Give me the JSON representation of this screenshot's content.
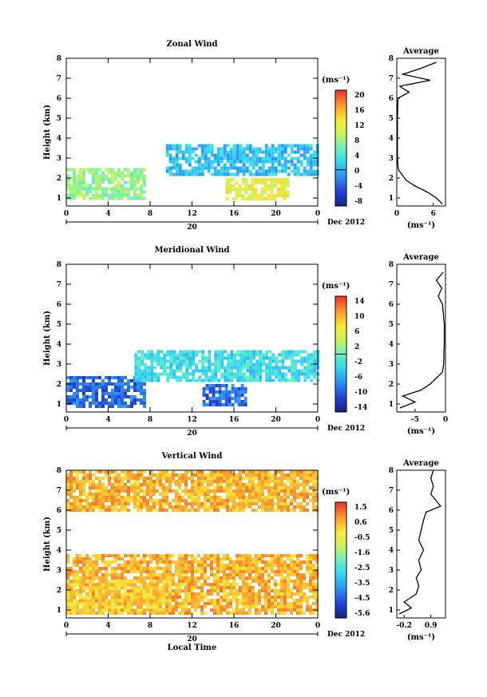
{
  "chart_data": [
    {
      "type": "heatmap",
      "title": "Zonal Wind",
      "xlabel": "",
      "ylabel": "Height (km)",
      "x_ticks": [
        "0",
        "4",
        "8",
        "12",
        "16",
        "20",
        "0"
      ],
      "y_ticks": [
        "1",
        "2",
        "3",
        "4",
        "5",
        "6",
        "7",
        "8"
      ],
      "xlim": [
        0,
        24
      ],
      "ylim": [
        0.6,
        8
      ],
      "date_day": "20",
      "date_label": "Dec 2012",
      "colorbar": {
        "unit": "(ms⁻¹)",
        "ticks": [
          "20",
          "16",
          "12",
          "8",
          "4",
          "0",
          "-4",
          "-8"
        ],
        "range": [
          -10,
          22
        ],
        "zero_line": 0
      },
      "regions": [
        {
          "x0": 0,
          "x1": 7.5,
          "y0": 0.9,
          "y1": 2.5,
          "value": 8
        },
        {
          "x0": 9.5,
          "x1": 24,
          "y0": 2.2,
          "y1": 3.7,
          "value": 1
        },
        {
          "x0": 15.2,
          "x1": 21,
          "y0": 0.9,
          "y1": 2.0,
          "value": 12
        }
      ],
      "profile": {
        "title": "Average",
        "xlabel": "(ms⁻¹)",
        "x_ticks": [
          "0",
          "6"
        ],
        "xlim": [
          0,
          8
        ],
        "heights": [
          0.7,
          1.0,
          1.3,
          1.6,
          1.9,
          2.2,
          2.4,
          2.6,
          3.0,
          4.0,
          5.0,
          6.0,
          6.3,
          6.6,
          6.9,
          7.2,
          7.5,
          7.8
        ],
        "values": [
          7.5,
          6.5,
          5.0,
          3.0,
          1.5,
          0.8,
          0.3,
          0.2,
          0.1,
          0.1,
          0.1,
          0.2,
          2.0,
          0.5,
          5.5,
          1.0,
          4.0,
          6.5
        ]
      }
    },
    {
      "type": "heatmap",
      "title": "Meridional Wind",
      "xlabel": "",
      "ylabel": "Height (km)",
      "x_ticks": [
        "0",
        "4",
        "8",
        "12",
        "16",
        "20",
        "0"
      ],
      "y_ticks": [
        "1",
        "2",
        "3",
        "4",
        "5",
        "6",
        "7",
        "8"
      ],
      "xlim": [
        0,
        24
      ],
      "ylim": [
        0.6,
        8
      ],
      "date_day": "20",
      "date_label": "Dec 2012",
      "colorbar": {
        "unit": "(ms⁻¹)",
        "ticks": [
          "14",
          "10",
          "6",
          "2",
          "-2",
          "-6",
          "-10",
          "-14"
        ],
        "range": [
          -16,
          16
        ],
        "zero_line": 0
      },
      "regions": [
        {
          "x0": 0,
          "x1": 7.5,
          "y0": 0.9,
          "y1": 2.4,
          "value": -10
        },
        {
          "x0": 6.5,
          "x1": 24,
          "y0": 2.2,
          "y1": 3.7,
          "value": -3
        },
        {
          "x0": 13,
          "x1": 17,
          "y0": 0.9,
          "y1": 2.0,
          "value": -10
        }
      ],
      "profile": {
        "title": "Average",
        "xlabel": "(ms⁻¹)",
        "x_ticks": [
          "-5",
          "0"
        ],
        "xlim": [
          -8,
          0
        ],
        "heights": [
          0.8,
          1.1,
          1.4,
          1.7,
          2.0,
          2.3,
          2.6,
          3.0,
          4.0,
          5.0,
          6.0,
          6.4,
          6.8,
          7.2,
          7.6
        ],
        "values": [
          -7.5,
          -5.0,
          -7.0,
          -4.0,
          -2.5,
          -1.5,
          -0.5,
          -0.3,
          -0.2,
          -0.2,
          -0.5,
          -1.2,
          -0.6,
          -1.5,
          -0.4
        ]
      }
    },
    {
      "type": "heatmap",
      "title": "Vertical Wind",
      "xlabel": "Local Time",
      "ylabel": "Height (km)",
      "x_ticks": [
        "0",
        "4",
        "8",
        "12",
        "16",
        "20",
        "0"
      ],
      "y_ticks": [
        "1",
        "2",
        "3",
        "4",
        "5",
        "6",
        "7",
        "8"
      ],
      "xlim": [
        0,
        24
      ],
      "ylim": [
        0.6,
        8
      ],
      "date_day": "20",
      "date_label": "Dec 2012",
      "colorbar": {
        "unit": "(ms⁻¹)",
        "ticks": [
          "1.5",
          "0.6",
          "-0.5",
          "-1.6",
          "-2.5",
          "-3.5",
          "-4.5",
          "-5.6"
        ],
        "range": [
          -6,
          2
        ],
        "zero_line": null
      },
      "regions": [
        {
          "x0": 0,
          "x1": 24,
          "y0": 0.9,
          "y1": 3.8,
          "value": 0.6
        },
        {
          "x0": 0,
          "x1": 10,
          "y0": 0.9,
          "y1": 2.5,
          "value": 0.2
        },
        {
          "x0": 0,
          "x1": 24,
          "y0": 6.0,
          "y1": 8.0,
          "value": 0.6
        }
      ],
      "profile": {
        "title": "Average",
        "xlabel": "(ms⁻¹)",
        "x_ticks": [
          "-0.2",
          "0.9"
        ],
        "xlim": [
          -0.5,
          1.5
        ],
        "heights": [
          0.8,
          1.1,
          1.4,
          1.8,
          2.2,
          2.6,
          3.0,
          3.5,
          4.0,
          4.5,
          5.0,
          5.5,
          5.9,
          6.2,
          6.5,
          6.8,
          7.2,
          7.6,
          8.0
        ],
        "values": [
          -0.4,
          0.1,
          -0.2,
          0.3,
          0.4,
          0.3,
          0.5,
          0.4,
          0.6,
          0.4,
          0.5,
          0.6,
          0.7,
          1.3,
          1.1,
          0.9,
          1.0,
          0.9,
          1.0
        ]
      }
    }
  ]
}
